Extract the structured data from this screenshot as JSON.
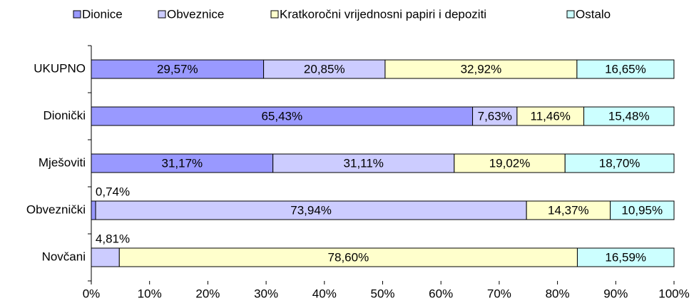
{
  "chart_data": {
    "type": "stacked_hbar",
    "categories": [
      "UKUPNO",
      "Dionički",
      "Mješoviti",
      "Obveznički",
      "Novčani"
    ],
    "series": [
      {
        "name": "Dionice",
        "color": "#9999ff",
        "values": [
          29.57,
          65.43,
          31.17,
          0.74,
          null
        ],
        "value_labels": [
          "29,57%",
          "65,43%",
          "31,17%",
          "0,74%",
          null
        ]
      },
      {
        "name": "Obveznice",
        "color": "#ccccff",
        "values": [
          20.85,
          7.63,
          31.11,
          73.94,
          4.81
        ],
        "value_labels": [
          "20,85%",
          "7,63%",
          "31,11%",
          "73,94%",
          "4,81%"
        ]
      },
      {
        "name": "Kratkoročni vrijednosni papiri i depoziti",
        "color": "#ffffcc",
        "values": [
          32.92,
          11.46,
          19.02,
          14.37,
          78.6
        ],
        "value_labels": [
          "32,92%",
          "11,46%",
          "19,02%",
          "14,37%",
          "78,60%"
        ]
      },
      {
        "name": "Ostalo",
        "color": "#ccffff",
        "values": [
          16.65,
          15.48,
          18.7,
          10.95,
          16.59
        ],
        "value_labels": [
          "16,65%",
          "15,48%",
          "18,70%",
          "10,95%",
          "16,59%"
        ]
      }
    ],
    "xlim": [
      0,
      100
    ],
    "xticks": [
      {
        "value": 0,
        "label": "0%"
      },
      {
        "value": 10,
        "label": "10%"
      },
      {
        "value": 20,
        "label": "20%"
      },
      {
        "value": 30,
        "label": "30%"
      },
      {
        "value": 40,
        "label": "40%"
      },
      {
        "value": 50,
        "label": "50%"
      },
      {
        "value": 60,
        "label": "60%"
      },
      {
        "value": 70,
        "label": "70%"
      },
      {
        "value": 80,
        "label": "80%"
      },
      {
        "value": 90,
        "label": "90%"
      },
      {
        "value": 100,
        "label": "100%"
      }
    ],
    "legend": "top"
  }
}
